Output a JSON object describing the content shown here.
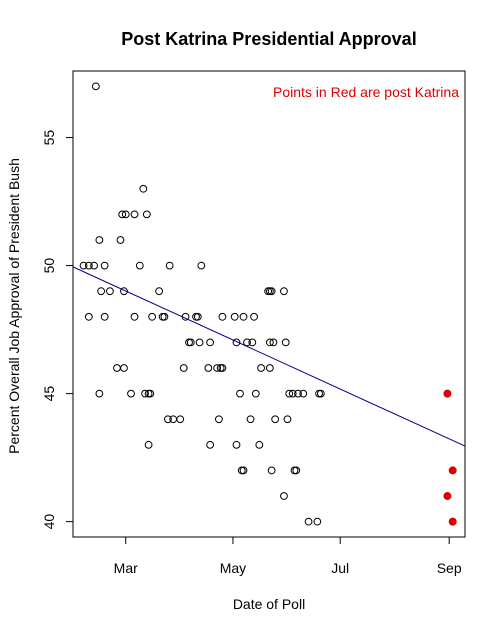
{
  "chart_data": {
    "type": "scatter",
    "title": "Post Katrina Presidential Approval",
    "xlabel": "Date of Poll",
    "ylabel": "Percent Overall Job Approval of President Bush",
    "annotation": "Points in Red are post Katrina",
    "xlim": [
      "2005-01-30",
      "2005-09-10"
    ],
    "ylim": [
      39.4,
      57.6
    ],
    "x_ticks": [
      {
        "date": "2005-03-01",
        "label": "Mar"
      },
      {
        "date": "2005-05-01",
        "label": "May"
      },
      {
        "date": "2005-07-01",
        "label": "Jul"
      },
      {
        "date": "2005-09-01",
        "label": "Sep"
      }
    ],
    "y_ticks": [
      40,
      45,
      50,
      55
    ],
    "colors": {
      "pre_katrina": "#000000",
      "post_katrina": "#dd0000",
      "trend_line": "#00008b",
      "annotation": "#dd0000"
    },
    "trend_line": {
      "start": {
        "x": "2005-01-30",
        "y": 49.95
      },
      "end": {
        "x": "2005-09-10",
        "y": 42.95
      }
    },
    "series": [
      {
        "name": "pre_katrina",
        "marker": "open-circle",
        "points": [
          {
            "x": "2005-02-05",
            "y": 50
          },
          {
            "x": "2005-02-08",
            "y": 48
          },
          {
            "x": "2005-02-08",
            "y": 50
          },
          {
            "x": "2005-02-11",
            "y": 50
          },
          {
            "x": "2005-02-12",
            "y": 57
          },
          {
            "x": "2005-02-14",
            "y": 51
          },
          {
            "x": "2005-02-14",
            "y": 45
          },
          {
            "x": "2005-02-15",
            "y": 49
          },
          {
            "x": "2005-02-17",
            "y": 48
          },
          {
            "x": "2005-02-17",
            "y": 50
          },
          {
            "x": "2005-02-20",
            "y": 49
          },
          {
            "x": "2005-02-24",
            "y": 46
          },
          {
            "x": "2005-02-26",
            "y": 51
          },
          {
            "x": "2005-02-27",
            "y": 52
          },
          {
            "x": "2005-02-28",
            "y": 46
          },
          {
            "x": "2005-02-28",
            "y": 49
          },
          {
            "x": "2005-03-01",
            "y": 52
          },
          {
            "x": "2005-03-04",
            "y": 45
          },
          {
            "x": "2005-03-06",
            "y": 48
          },
          {
            "x": "2005-03-06",
            "y": 52
          },
          {
            "x": "2005-03-09",
            "y": 50
          },
          {
            "x": "2005-03-11",
            "y": 53
          },
          {
            "x": "2005-03-12",
            "y": 45
          },
          {
            "x": "2005-03-13",
            "y": 52
          },
          {
            "x": "2005-03-14",
            "y": 45
          },
          {
            "x": "2005-03-14",
            "y": 43
          },
          {
            "x": "2005-03-15",
            "y": 45
          },
          {
            "x": "2005-03-16",
            "y": 48
          },
          {
            "x": "2005-03-20",
            "y": 49
          },
          {
            "x": "2005-03-22",
            "y": 48
          },
          {
            "x": "2005-03-23",
            "y": 48
          },
          {
            "x": "2005-03-25",
            "y": 44
          },
          {
            "x": "2005-03-26",
            "y": 50
          },
          {
            "x": "2005-03-28",
            "y": 44
          },
          {
            "x": "2005-04-01",
            "y": 44
          },
          {
            "x": "2005-04-03",
            "y": 46
          },
          {
            "x": "2005-04-04",
            "y": 48
          },
          {
            "x": "2005-04-06",
            "y": 47
          },
          {
            "x": "2005-04-07",
            "y": 47
          },
          {
            "x": "2005-04-10",
            "y": 48
          },
          {
            "x": "2005-04-11",
            "y": 48
          },
          {
            "x": "2005-04-12",
            "y": 47
          },
          {
            "x": "2005-04-13",
            "y": 50
          },
          {
            "x": "2005-04-17",
            "y": 46
          },
          {
            "x": "2005-04-18",
            "y": 43
          },
          {
            "x": "2005-04-18",
            "y": 47
          },
          {
            "x": "2005-04-22",
            "y": 46
          },
          {
            "x": "2005-04-23",
            "y": 44
          },
          {
            "x": "2005-04-24",
            "y": 46
          },
          {
            "x": "2005-04-25",
            "y": 46
          },
          {
            "x": "2005-04-25",
            "y": 48
          },
          {
            "x": "2005-05-02",
            "y": 48
          },
          {
            "x": "2005-05-03",
            "y": 43
          },
          {
            "x": "2005-05-03",
            "y": 47
          },
          {
            "x": "2005-05-05",
            "y": 45
          },
          {
            "x": "2005-05-06",
            "y": 42
          },
          {
            "x": "2005-05-07",
            "y": 42
          },
          {
            "x": "2005-05-07",
            "y": 48
          },
          {
            "x": "2005-05-09",
            "y": 47
          },
          {
            "x": "2005-05-11",
            "y": 44
          },
          {
            "x": "2005-05-12",
            "y": 47
          },
          {
            "x": "2005-05-13",
            "y": 48
          },
          {
            "x": "2005-05-14",
            "y": 45
          },
          {
            "x": "2005-05-16",
            "y": 43
          },
          {
            "x": "2005-05-17",
            "y": 46
          },
          {
            "x": "2005-05-21",
            "y": 49
          },
          {
            "x": "2005-05-22",
            "y": 49
          },
          {
            "x": "2005-05-22",
            "y": 47
          },
          {
            "x": "2005-05-22",
            "y": 46
          },
          {
            "x": "2005-05-23",
            "y": 49
          },
          {
            "x": "2005-05-23",
            "y": 42
          },
          {
            "x": "2005-05-24",
            "y": 47
          },
          {
            "x": "2005-05-25",
            "y": 44
          },
          {
            "x": "2005-05-30",
            "y": 49
          },
          {
            "x": "2005-05-30",
            "y": 41
          },
          {
            "x": "2005-05-31",
            "y": 47
          },
          {
            "x": "2005-06-01",
            "y": 44
          },
          {
            "x": "2005-06-02",
            "y": 45
          },
          {
            "x": "2005-06-04",
            "y": 45
          },
          {
            "x": "2005-06-05",
            "y": 42
          },
          {
            "x": "2005-06-06",
            "y": 42
          },
          {
            "x": "2005-06-07",
            "y": 45
          },
          {
            "x": "2005-06-10",
            "y": 45
          },
          {
            "x": "2005-06-13",
            "y": 40
          },
          {
            "x": "2005-06-18",
            "y": 40
          },
          {
            "x": "2005-06-19",
            "y": 45
          },
          {
            "x": "2005-06-20",
            "y": 45
          }
        ]
      },
      {
        "name": "post_katrina",
        "marker": "filled-circle",
        "points": [
          {
            "x": "2005-08-31",
            "y": 45
          },
          {
            "x": "2005-08-31",
            "y": 41
          },
          {
            "x": "2005-09-03",
            "y": 42
          },
          {
            "x": "2005-09-03",
            "y": 40
          }
        ]
      }
    ]
  }
}
